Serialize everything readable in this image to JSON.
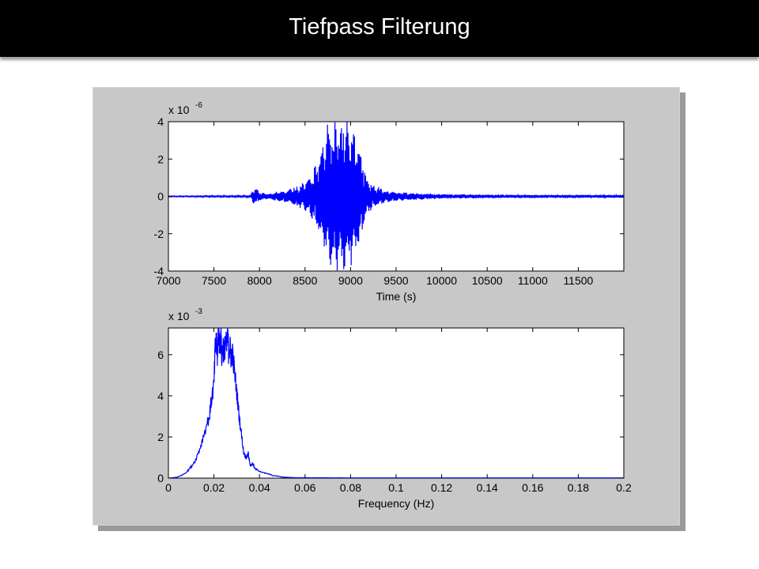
{
  "slide": {
    "title": "Tiefpass Filterung"
  },
  "colors": {
    "background": "#ffffff",
    "title_bar": "#000000",
    "title_text": "#ffffff",
    "figure_bg": "#c8c8c8",
    "axes_bg": "#ffffff",
    "series": "#0000ff"
  },
  "chart_data": [
    {
      "type": "line",
      "title": "",
      "xlabel": "Time (s)",
      "ylabel": "",
      "exponent_label": "x 10",
      "exponent": "-6",
      "xlim": [
        7000,
        12000
      ],
      "ylim": [
        -4,
        4
      ],
      "xticks": [
        7000,
        7500,
        8000,
        8500,
        9000,
        9500,
        10000,
        10500,
        11000,
        11500
      ],
      "xtick_labels": [
        "7000",
        "7500",
        "8000",
        "8500",
        "9000",
        "9500",
        "10000",
        "10500",
        "11000",
        "11500"
      ],
      "yticks": [
        -4,
        -2,
        0,
        2,
        4
      ],
      "ytick_labels": [
        "-4",
        "-2",
        "0",
        "2",
        "4"
      ],
      "grid": false,
      "series": [
        {
          "color": "#0000ff",
          "envelope": [
            [
              7000,
              0.02
            ],
            [
              7900,
              0.04
            ],
            [
              7920,
              0.3
            ],
            [
              7960,
              0.45
            ],
            [
              8000,
              0.2
            ],
            [
              8100,
              0.15
            ],
            [
              8200,
              0.25
            ],
            [
              8300,
              0.35
            ],
            [
              8400,
              0.55
            ],
            [
              8500,
              0.8
            ],
            [
              8600,
              1.4
            ],
            [
              8650,
              2.0
            ],
            [
              8700,
              3.0
            ],
            [
              8750,
              3.6
            ],
            [
              8800,
              3.8
            ],
            [
              8850,
              4.0
            ],
            [
              8900,
              4.0
            ],
            [
              8950,
              3.9
            ],
            [
              9000,
              3.6
            ],
            [
              9050,
              3.3
            ],
            [
              9100,
              2.6
            ],
            [
              9150,
              1.5
            ],
            [
              9200,
              0.8
            ],
            [
              9300,
              0.5
            ],
            [
              9400,
              0.3
            ],
            [
              9500,
              0.25
            ],
            [
              9700,
              0.18
            ],
            [
              10000,
              0.12
            ],
            [
              10500,
              0.09
            ],
            [
              11000,
              0.08
            ],
            [
              11500,
              0.07
            ],
            [
              12000,
              0.07
            ]
          ]
        }
      ]
    },
    {
      "type": "line",
      "title": "",
      "xlabel": "Frequency (Hz)",
      "ylabel": "",
      "exponent_label": "x 10",
      "exponent": "-3",
      "xlim": [
        0,
        0.2
      ],
      "ylim": [
        0,
        7.3
      ],
      "xticks": [
        0,
        0.02,
        0.04,
        0.06,
        0.08,
        0.1,
        0.12,
        0.14,
        0.16,
        0.18,
        0.2
      ],
      "xtick_labels": [
        "0",
        "0.02",
        "0.04",
        "0.06",
        "0.08",
        "0.1",
        "0.12",
        "0.14",
        "0.16",
        "0.18",
        "0.2"
      ],
      "yticks": [
        0,
        2,
        4,
        6
      ],
      "ytick_labels": [
        "0",
        "2",
        "4",
        "6"
      ],
      "grid": false,
      "series": [
        {
          "color": "#0000ff",
          "points": [
            [
              0,
              0.0
            ],
            [
              0.002,
              0.02
            ],
            [
              0.004,
              0.05
            ],
            [
              0.006,
              0.15
            ],
            [
              0.008,
              0.3
            ],
            [
              0.01,
              0.55
            ],
            [
              0.012,
              0.9
            ],
            [
              0.014,
              1.5
            ],
            [
              0.016,
              2.3
            ],
            [
              0.018,
              3.0
            ],
            [
              0.019,
              3.9
            ],
            [
              0.02,
              4.5
            ],
            [
              0.0205,
              6.2
            ],
            [
              0.021,
              6.6
            ],
            [
              0.0215,
              6.0
            ],
            [
              0.022,
              7.2
            ],
            [
              0.0225,
              6.4
            ],
            [
              0.023,
              6.9
            ],
            [
              0.0235,
              5.8
            ],
            [
              0.024,
              6.5
            ],
            [
              0.0245,
              6.0
            ],
            [
              0.025,
              6.7
            ],
            [
              0.0255,
              6.3
            ],
            [
              0.026,
              7.0
            ],
            [
              0.0265,
              6.1
            ],
            [
              0.027,
              6.4
            ],
            [
              0.0275,
              5.9
            ],
            [
              0.028,
              6.1
            ],
            [
              0.029,
              5.2
            ],
            [
              0.03,
              4.2
            ],
            [
              0.031,
              3.1
            ],
            [
              0.032,
              2.2
            ],
            [
              0.033,
              1.3
            ],
            [
              0.034,
              1.0
            ],
            [
              0.035,
              1.2
            ],
            [
              0.036,
              0.6
            ],
            [
              0.037,
              0.7
            ],
            [
              0.038,
              0.45
            ],
            [
              0.04,
              0.35
            ],
            [
              0.042,
              0.25
            ],
            [
              0.044,
              0.2
            ],
            [
              0.046,
              0.12
            ],
            [
              0.048,
              0.1
            ],
            [
              0.05,
              0.05
            ],
            [
              0.052,
              0.04
            ],
            [
              0.056,
              0.02
            ],
            [
              0.06,
              0.02
            ],
            [
              0.08,
              0.01
            ],
            [
              0.1,
              0.01
            ],
            [
              0.12,
              0.01
            ],
            [
              0.14,
              0.01
            ],
            [
              0.16,
              0.01
            ],
            [
              0.18,
              0.01
            ],
            [
              0.2,
              0.01
            ]
          ]
        }
      ]
    }
  ]
}
